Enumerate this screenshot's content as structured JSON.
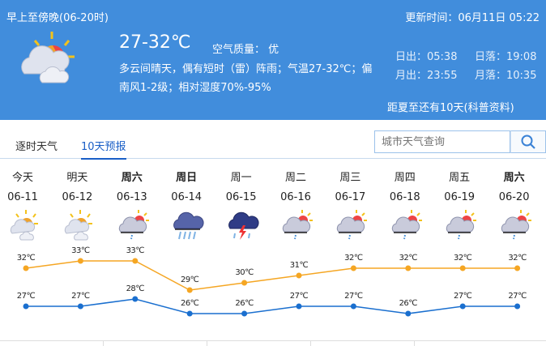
{
  "header": {
    "period": "早上至傍晚(06-20时)",
    "update_time": "更新时间：06月11日 05:22",
    "temp_range": "27-32℃",
    "air_quality": "空气质量： 优",
    "desc_line1": "多云间晴天，偶有短时（雷）阵雨；气温27-32℃；偏",
    "desc_line2": "南风1-2级；相对湿度70%-95%",
    "sunrise": "日出：05:38",
    "sunset": "日落：19:08",
    "moonrise": "月出：23:55",
    "moonset": "月落：10:35",
    "summer_note": "距夏至还有10天(科普资料)",
    "icon": "partly-cloudy-sun-icon"
  },
  "tabs": [
    {
      "label": "逐时天气",
      "active": false
    },
    {
      "label": "10天预报",
      "active": true
    }
  ],
  "search": {
    "placeholder": "城市天气查询",
    "icon": "search-icon"
  },
  "colors": {
    "header_bg": "#418ddc",
    "high_line": "#f5a623",
    "low_line": "#1a6fcf",
    "accent": "#1a5fc7"
  },
  "days": [
    {
      "name": "今天",
      "date": "06-11",
      "icon": "partly-cloudy",
      "bold": false,
      "high": "32℃",
      "low": "27℃"
    },
    {
      "name": "明天",
      "date": "06-12",
      "icon": "partly-cloudy",
      "bold": false,
      "high": "33℃",
      "low": "27℃"
    },
    {
      "name": "周六",
      "date": "06-13",
      "icon": "cloudy-shower",
      "bold": true,
      "high": "33℃",
      "low": "28℃"
    },
    {
      "name": "周日",
      "date": "06-14",
      "icon": "heavy-rain",
      "bold": true,
      "high": "29℃",
      "low": "26℃"
    },
    {
      "name": "周一",
      "date": "06-15",
      "icon": "thunderstorm",
      "bold": false,
      "high": "30℃",
      "low": "26℃"
    },
    {
      "name": "周二",
      "date": "06-16",
      "icon": "cloudy-shower",
      "bold": false,
      "high": "31℃",
      "low": "27℃"
    },
    {
      "name": "周三",
      "date": "06-17",
      "icon": "cloudy-shower",
      "bold": false,
      "high": "32℃",
      "low": "27℃"
    },
    {
      "name": "周四",
      "date": "06-18",
      "icon": "cloudy-shower",
      "bold": false,
      "high": "32℃",
      "low": "26℃"
    },
    {
      "name": "周五",
      "date": "06-19",
      "icon": "cloudy-shower",
      "bold": false,
      "high": "32℃",
      "low": "27℃"
    },
    {
      "name": "周六",
      "date": "06-20",
      "icon": "cloudy-shower",
      "bold": true,
      "high": "32℃",
      "low": "27℃"
    }
  ],
  "chart_data": {
    "type": "line",
    "categories": [
      "06-11",
      "06-12",
      "06-13",
      "06-14",
      "06-15",
      "06-16",
      "06-17",
      "06-18",
      "06-19",
      "06-20"
    ],
    "series": [
      {
        "values": [
          32,
          33,
          33,
          29,
          30,
          31,
          32,
          32,
          32,
          32
        ],
        "color": "#f5a623"
      },
      {
        "values": [
          27,
          27,
          28,
          26,
          26,
          27,
          27,
          26,
          27,
          27
        ],
        "color": "#1a6fcf"
      }
    ]
  }
}
